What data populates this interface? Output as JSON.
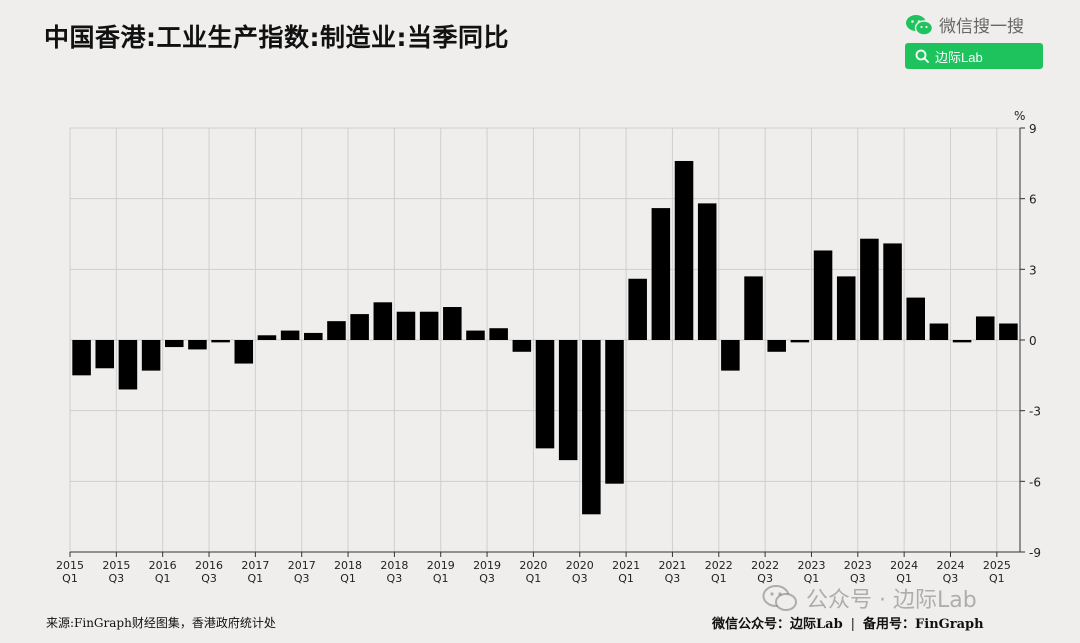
{
  "header": {
    "title": "中国香港:工业生产指数:制造业:当季同比",
    "wechat_search_text": "微信搜一搜",
    "search_box_text": "边际Lab"
  },
  "footer": {
    "source": "来源:FinGraph财经图集，香港政府统计处",
    "account_label": "微信公众号：边际Lab",
    "separator": "|",
    "backup_label": "备用号：FinGraph",
    "watermark": "公众号 · 边际Lab"
  },
  "icons": {
    "wechat": "wechat-icon",
    "search": "search-icon"
  },
  "colors": {
    "bar": "#000000",
    "background": "#efeeec",
    "search_box": "#1fc35e"
  },
  "chart_data": {
    "type": "bar",
    "title": "中国香港:工业生产指数:制造业:当季同比",
    "unit": "%",
    "ylim": [
      -9,
      9
    ],
    "yticks": [
      9,
      6,
      3,
      0,
      -3,
      -6,
      -9
    ],
    "grid": true,
    "y_axis_position": "right",
    "categories": [
      "2015Q1",
      "2015Q2",
      "2015Q3",
      "2015Q4",
      "2016Q1",
      "2016Q2",
      "2016Q3",
      "2016Q4",
      "2017Q1",
      "2017Q2",
      "2017Q3",
      "2017Q4",
      "2018Q1",
      "2018Q2",
      "2018Q3",
      "2018Q4",
      "2019Q1",
      "2019Q2",
      "2019Q3",
      "2019Q4",
      "2020Q1",
      "2020Q2",
      "2020Q3",
      "2020Q4",
      "2021Q1",
      "2021Q2",
      "2021Q3",
      "2021Q4",
      "2022Q1",
      "2022Q2",
      "2022Q3",
      "2022Q4",
      "2023Q1",
      "2023Q2",
      "2023Q3",
      "2023Q4",
      "2024Q1",
      "2024Q2",
      "2024Q3",
      "2024Q4",
      "2025Q1"
    ],
    "values": [
      -1.5,
      -1.2,
      -2.1,
      -1.3,
      -0.3,
      -0.4,
      -0.1,
      -1.0,
      0.2,
      0.4,
      0.3,
      0.8,
      1.1,
      1.6,
      1.2,
      1.2,
      1.4,
      0.4,
      0.5,
      -0.5,
      -4.6,
      -5.1,
      -7.4,
      -6.1,
      2.6,
      5.6,
      7.6,
      5.8,
      -1.3,
      2.7,
      -0.5,
      -0.1,
      3.8,
      2.7,
      4.3,
      4.1,
      1.8,
      0.7,
      -0.1,
      1.0,
      0.7
    ],
    "x_tick_labels": [
      {
        "index": 0,
        "year": "2015",
        "quarter": "Q1"
      },
      {
        "index": 2,
        "year": "2015",
        "quarter": "Q3"
      },
      {
        "index": 4,
        "year": "2016",
        "quarter": "Q1"
      },
      {
        "index": 6,
        "year": "2016",
        "quarter": "Q3"
      },
      {
        "index": 8,
        "year": "2017",
        "quarter": "Q1"
      },
      {
        "index": 10,
        "year": "2017",
        "quarter": "Q3"
      },
      {
        "index": 12,
        "year": "2018",
        "quarter": "Q1"
      },
      {
        "index": 14,
        "year": "2018",
        "quarter": "Q3"
      },
      {
        "index": 16,
        "year": "2019",
        "quarter": "Q1"
      },
      {
        "index": 18,
        "year": "2019",
        "quarter": "Q3"
      },
      {
        "index": 20,
        "year": "2020",
        "quarter": "Q1"
      },
      {
        "index": 22,
        "year": "2020",
        "quarter": "Q3"
      },
      {
        "index": 24,
        "year": "2021",
        "quarter": "Q1"
      },
      {
        "index": 26,
        "year": "2021",
        "quarter": "Q3"
      },
      {
        "index": 28,
        "year": "2022",
        "quarter": "Q1"
      },
      {
        "index": 30,
        "year": "2022",
        "quarter": "Q3"
      },
      {
        "index": 32,
        "year": "2023",
        "quarter": "Q1"
      },
      {
        "index": 34,
        "year": "2023",
        "quarter": "Q3"
      },
      {
        "index": 36,
        "year": "2024",
        "quarter": "Q1"
      },
      {
        "index": 38,
        "year": "2024",
        "quarter": "Q3"
      },
      {
        "index": 40,
        "year": "2025",
        "quarter": "Q1"
      }
    ]
  }
}
